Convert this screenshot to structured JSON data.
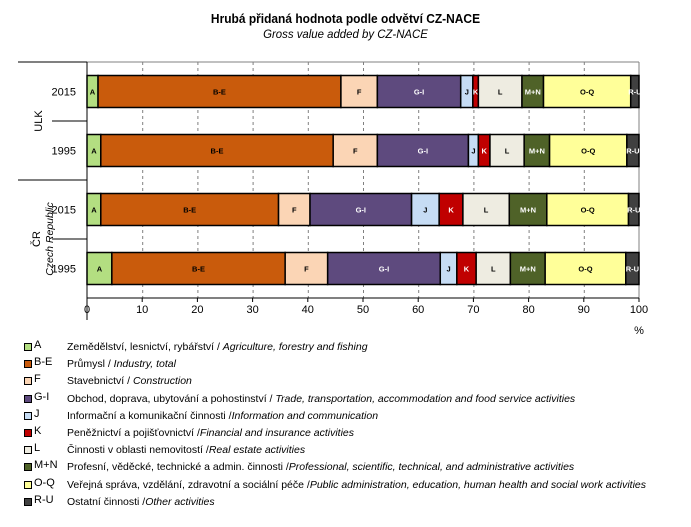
{
  "chart_data": {
    "type": "bar",
    "orientation": "horizontal",
    "stacked": true,
    "title": "Hrubá přidaná hodnota podle odvětví CZ-NACE",
    "subtitle": "Gross value added by CZ-NACE",
    "xlabel": "%",
    "xlim": [
      0,
      100
    ],
    "xticks": [
      0,
      10,
      20,
      30,
      40,
      50,
      60,
      70,
      80,
      90,
      100
    ],
    "grid": "vertical-dashed",
    "groups": [
      {
        "label": "ULK",
        "sublabel": "",
        "rows": [
          "2015",
          "1995"
        ]
      },
      {
        "label": "ČR",
        "sublabel": "Czech Republic",
        "rows": [
          "2015",
          "1995"
        ]
      }
    ],
    "categories": [
      "ULK 2015",
      "ULK 1995",
      "ČR 2015",
      "ČR 1995"
    ],
    "series": [
      {
        "name": "A",
        "color": "#b3de81",
        "label_color": "#000000",
        "values": [
          2.0,
          2.5,
          2.5,
          4.5
        ]
      },
      {
        "name": "B-E",
        "color": "#c95b0c",
        "label_color": "#000000",
        "values": [
          44.0,
          42.1,
          32.2,
          31.4
        ]
      },
      {
        "name": "F",
        "color": "#fbd5b5",
        "label_color": "#000000",
        "values": [
          6.6,
          8.0,
          5.7,
          7.7
        ]
      },
      {
        "name": "G-I",
        "color": "#5e4a7e",
        "label_color": "#ffffff",
        "values": [
          15.1,
          16.5,
          18.4,
          20.4
        ]
      },
      {
        "name": "J",
        "color": "#c6dcf4",
        "label_color": "#000000",
        "values": [
          2.2,
          1.8,
          5.0,
          3.0
        ]
      },
      {
        "name": "K",
        "color": "#c00000",
        "label_color": "#ffffff",
        "values": [
          1.0,
          2.1,
          4.3,
          3.5
        ]
      },
      {
        "name": "L",
        "color": "#eeece1",
        "label_color": "#000000",
        "values": [
          7.9,
          6.2,
          8.4,
          6.2
        ]
      },
      {
        "name": "M+N",
        "color": "#4f6228",
        "label_color": "#ffffff",
        "values": [
          3.9,
          4.6,
          6.8,
          6.3
        ]
      },
      {
        "name": "O-Q",
        "color": "#ffff99",
        "label_color": "#000000",
        "values": [
          15.8,
          14.0,
          14.8,
          14.6
        ]
      },
      {
        "name": "R-U",
        "color": "#404040",
        "label_color": "#ffffff",
        "values": [
          1.5,
          2.2,
          1.9,
          2.4
        ]
      }
    ],
    "legend": {
      "placement": "bottom",
      "items": [
        {
          "code": "A",
          "cz": "Zemědělství, lesnictví, rybářství / ",
          "en": "Agriculture, forestry and fishing"
        },
        {
          "code": "B-E",
          "cz": "Průmysl / ",
          "en": "Industry, total"
        },
        {
          "code": "F",
          "cz": "Stavebnictví / ",
          "en": "Construction"
        },
        {
          "code": "G-I",
          "cz": "Obchod, doprava, ubytování a pohostinství / ",
          "en": "Trade, transportation, accommodation and food service activities"
        },
        {
          "code": "J",
          "cz": "Informační a komunikační činnosti /",
          "en": "Information and communication"
        },
        {
          "code": "K",
          "cz": "Peněžnictví a pojišťovnictví /",
          "en": "Financial and insurance activities"
        },
        {
          "code": "L",
          "cz": "Činnosti v oblasti nemovitostí /",
          "en": "Real estate activities"
        },
        {
          "code": "M+N",
          "cz": "Profesní, věděcké, technické a admin. činnosti /",
          "en": "Professional, scientific, technical, and administrative activities"
        },
        {
          "code": "O-Q",
          "cz": "Veřejná správa, vzdělání, zdravotní a sociální péče /",
          "en": "Public administration, education, human health  and social work activities"
        },
        {
          "code": "R-U",
          "cz": "Ostatní činnosti /",
          "en": "Other activities"
        }
      ]
    }
  }
}
